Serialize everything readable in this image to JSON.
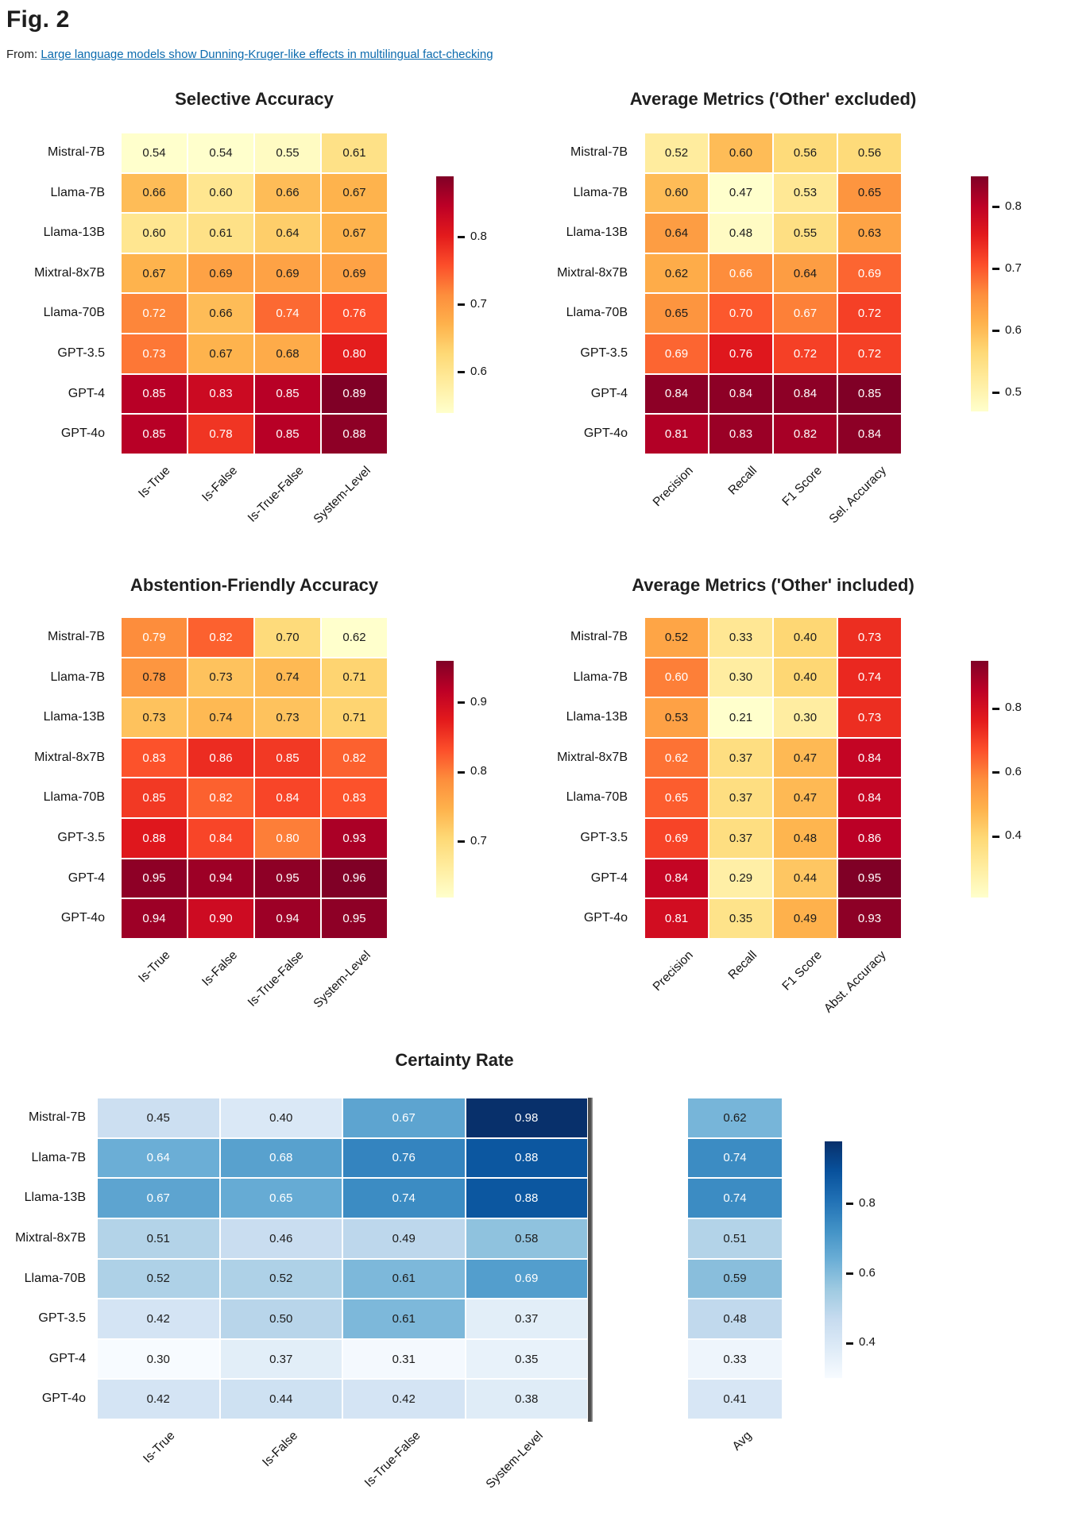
{
  "header": {
    "fig_label": "Fig. 2",
    "from_prefix": "From:",
    "source_title": "Large language models show Dunning-Kruger-like effects in multilingual fact-checking"
  },
  "colors": {
    "link": "#0c6bae",
    "cell_text_dark": "#1b1b1b",
    "cell_text_light": "#ffffff",
    "red_colormap": "YlOrRd",
    "blue_colormap": "Blues"
  },
  "chart_data": [
    {
      "type": "heatmap",
      "title": "Selective Accuracy",
      "rows": [
        "Mistral-7B",
        "Llama-7B",
        "Llama-13B",
        "Mixtral-8x7B",
        "Llama-70B",
        "GPT-3.5",
        "GPT-4",
        "GPT-4o"
      ],
      "columns": [
        "Is-True",
        "Is-False",
        "Is-True-False",
        "System-Level"
      ],
      "values": [
        [
          0.54,
          0.54,
          0.55,
          0.61
        ],
        [
          0.66,
          0.6,
          0.66,
          0.67
        ],
        [
          0.6,
          0.61,
          0.64,
          0.67
        ],
        [
          0.67,
          0.69,
          0.69,
          0.69
        ],
        [
          0.72,
          0.66,
          0.74,
          0.76
        ],
        [
          0.73,
          0.67,
          0.68,
          0.8
        ],
        [
          0.85,
          0.83,
          0.85,
          0.89
        ],
        [
          0.85,
          0.78,
          0.85,
          0.88
        ]
      ],
      "colormap": "YlOrRd",
      "vmin": 0.54,
      "vmax": 0.89,
      "colorbar_ticks": [
        "0.8",
        "0.7",
        "0.6"
      ],
      "colorbar_position": "right"
    },
    {
      "type": "heatmap",
      "title": "Average Metrics ('Other' excluded)",
      "rows": [
        "Mistral-7B",
        "Llama-7B",
        "Llama-13B",
        "Mixtral-8x7B",
        "Llama-70B",
        "GPT-3.5",
        "GPT-4",
        "GPT-4o"
      ],
      "columns": [
        "Precision",
        "Recall",
        "F1 Score",
        "Sel. Accuracy"
      ],
      "values": [
        [
          0.52,
          0.6,
          0.56,
          0.56
        ],
        [
          0.6,
          0.47,
          0.53,
          0.65
        ],
        [
          0.64,
          0.48,
          0.55,
          0.63
        ],
        [
          0.62,
          0.66,
          0.64,
          0.69
        ],
        [
          0.65,
          0.7,
          0.67,
          0.72
        ],
        [
          0.69,
          0.76,
          0.72,
          0.72
        ],
        [
          0.84,
          0.84,
          0.84,
          0.85
        ],
        [
          0.81,
          0.83,
          0.82,
          0.84
        ]
      ],
      "colormap": "YlOrRd",
      "vmin": 0.47,
      "vmax": 0.85,
      "colorbar_ticks": [
        "0.8",
        "0.7",
        "0.6",
        "0.5"
      ],
      "colorbar_position": "right"
    },
    {
      "type": "heatmap",
      "title": "Abstention-Friendly Accuracy",
      "rows": [
        "Mistral-7B",
        "Llama-7B",
        "Llama-13B",
        "Mixtral-8x7B",
        "Llama-70B",
        "GPT-3.5",
        "GPT-4",
        "GPT-4o"
      ],
      "columns": [
        "Is-True",
        "Is-False",
        "Is-True-False",
        "System-Level"
      ],
      "values": [
        [
          0.79,
          0.82,
          0.7,
          0.62
        ],
        [
          0.78,
          0.73,
          0.74,
          0.71
        ],
        [
          0.73,
          0.74,
          0.73,
          0.71
        ],
        [
          0.83,
          0.86,
          0.85,
          0.82
        ],
        [
          0.85,
          0.82,
          0.84,
          0.83
        ],
        [
          0.88,
          0.84,
          0.8,
          0.93
        ],
        [
          0.95,
          0.94,
          0.95,
          0.96
        ],
        [
          0.94,
          0.9,
          0.94,
          0.95
        ]
      ],
      "colormap": "YlOrRd",
      "vmin": 0.62,
      "vmax": 0.96,
      "colorbar_ticks": [
        "0.9",
        "0.8",
        "0.7"
      ],
      "colorbar_position": "right"
    },
    {
      "type": "heatmap",
      "title": "Average Metrics ('Other' included)",
      "rows": [
        "Mistral-7B",
        "Llama-7B",
        "Llama-13B",
        "Mixtral-8x7B",
        "Llama-70B",
        "GPT-3.5",
        "GPT-4",
        "GPT-4o"
      ],
      "columns": [
        "Precision",
        "Recall",
        "F1 Score",
        "Abst. Accuracy"
      ],
      "values": [
        [
          0.52,
          0.33,
          0.4,
          0.73
        ],
        [
          0.6,
          0.3,
          0.4,
          0.74
        ],
        [
          0.53,
          0.21,
          0.3,
          0.73
        ],
        [
          0.62,
          0.37,
          0.47,
          0.84
        ],
        [
          0.65,
          0.37,
          0.47,
          0.84
        ],
        [
          0.69,
          0.37,
          0.48,
          0.86
        ],
        [
          0.84,
          0.29,
          0.44,
          0.95
        ],
        [
          0.81,
          0.35,
          0.49,
          0.93
        ]
      ],
      "colormap": "YlOrRd",
      "vmin": 0.21,
      "vmax": 0.95,
      "colorbar_ticks": [
        "0.8",
        "0.6",
        "0.4"
      ],
      "colorbar_position": "right"
    },
    {
      "type": "heatmap",
      "title": "Certainty Rate",
      "rows": [
        "Mistral-7B",
        "Llama-7B",
        "Llama-13B",
        "Mixtral-8x7B",
        "Llama-70B",
        "GPT-3.5",
        "GPT-4",
        "GPT-4o"
      ],
      "columns": [
        "Is-True",
        "Is-False",
        "Is-True-False",
        "System-Level"
      ],
      "values": [
        [
          0.45,
          0.4,
          0.67,
          0.98
        ],
        [
          0.64,
          0.68,
          0.76,
          0.88
        ],
        [
          0.67,
          0.65,
          0.74,
          0.88
        ],
        [
          0.51,
          0.46,
          0.49,
          0.58
        ],
        [
          0.52,
          0.52,
          0.61,
          0.69
        ],
        [
          0.42,
          0.5,
          0.61,
          0.37
        ],
        [
          0.3,
          0.37,
          0.31,
          0.35
        ],
        [
          0.42,
          0.44,
          0.42,
          0.38
        ]
      ],
      "avg_column": {
        "label": "Avg",
        "values": [
          0.62,
          0.74,
          0.74,
          0.51,
          0.59,
          0.48,
          0.33,
          0.41
        ]
      },
      "colormap": "Blues",
      "vmin": 0.3,
      "vmax": 0.98,
      "colorbar_ticks": [
        "0.8",
        "0.6",
        "0.4"
      ],
      "colorbar_position": "right"
    }
  ]
}
